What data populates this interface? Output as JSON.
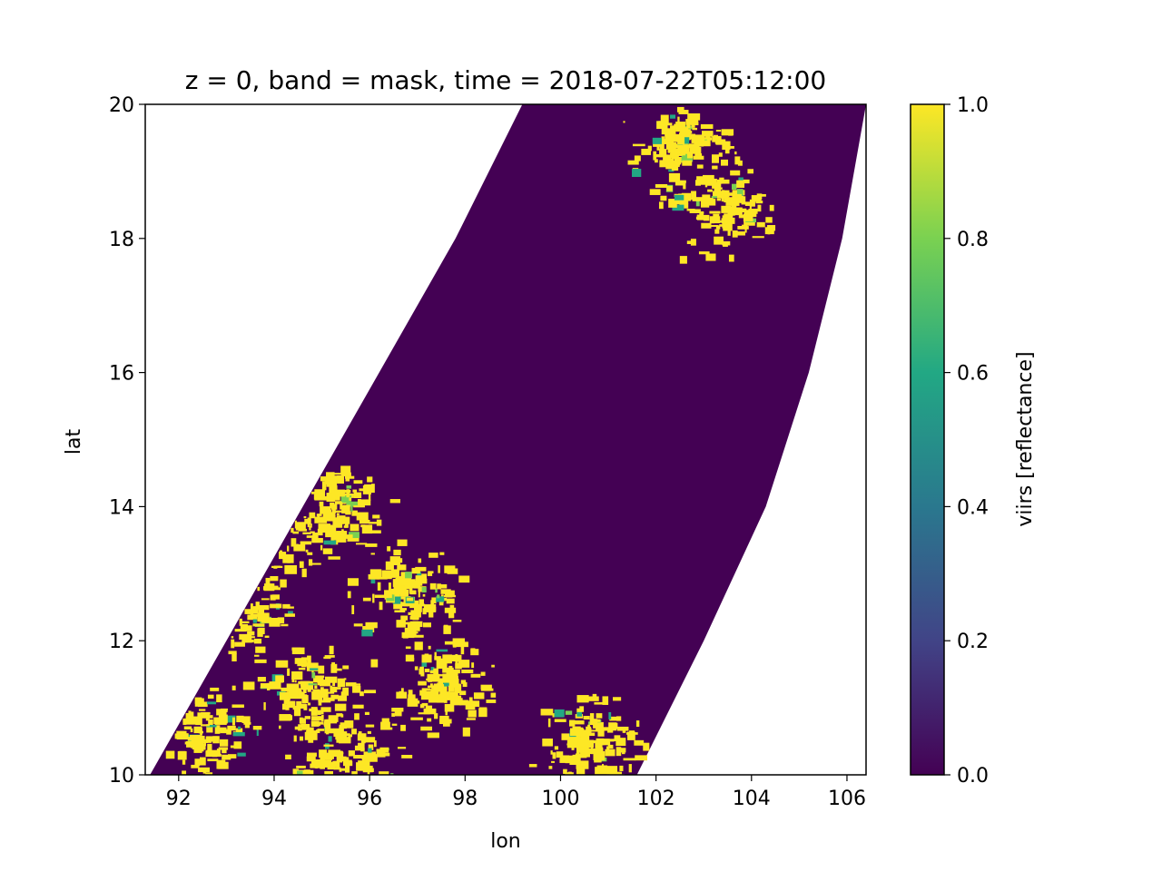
{
  "chart_data": {
    "type": "heatmap",
    "title": "z = 0, band = mask, time = 2018-07-22T05:12:00",
    "xlabel": "lon",
    "ylabel": "lat",
    "xlim": [
      91.3,
      106.4
    ],
    "ylim": [
      10,
      20
    ],
    "xticks": [
      92,
      94,
      96,
      98,
      100,
      102,
      104,
      106
    ],
    "yticks": [
      10,
      12,
      14,
      16,
      18,
      20
    ],
    "xtick_labels": [
      "92",
      "94",
      "96",
      "98",
      "100",
      "102",
      "104",
      "106"
    ],
    "ytick_labels": [
      "10",
      "12",
      "14",
      "16",
      "18",
      "20"
    ],
    "colorbar": {
      "label": "viirs [reflectance]",
      "range": [
        0.0,
        1.0
      ],
      "ticks": [
        0.0,
        0.2,
        0.4,
        0.6,
        0.8,
        1.0
      ],
      "tick_labels": [
        "0.0",
        "0.2",
        "0.4",
        "0.6",
        "0.8",
        "1.0"
      ],
      "colormap": "viridis",
      "colors": [
        "#440154",
        "#414487",
        "#2a788e",
        "#22a884",
        "#7ad151",
        "#fde725"
      ]
    },
    "swath": {
      "description": "satellite swath; values outside swath are empty",
      "left_edge": [
        [
          91.4,
          10
        ],
        [
          93.0,
          12
        ],
        [
          94.6,
          14
        ],
        [
          96.2,
          16
        ],
        [
          97.8,
          18
        ],
        [
          99.2,
          20
        ]
      ],
      "right_edge": [
        [
          101.6,
          10
        ],
        [
          103.0,
          12
        ],
        [
          104.3,
          14
        ],
        [
          105.2,
          16
        ],
        [
          105.9,
          18
        ],
        [
          106.4,
          20
        ]
      ]
    },
    "background_value": 0.0,
    "masked_regions": [
      {
        "lon": 94.0,
        "lat": 13.6,
        "value": 1.0
      },
      {
        "lon": 95.2,
        "lat": 14.1,
        "value": 1.0
      },
      {
        "lon": 93.2,
        "lat": 12.4,
        "value": 1.0
      },
      {
        "lon": 94.8,
        "lat": 11.2,
        "value": 1.0
      },
      {
        "lon": 96.8,
        "lat": 12.8,
        "value": 1.0
      },
      {
        "lon": 97.5,
        "lat": 11.4,
        "value": 1.0
      },
      {
        "lon": 92.4,
        "lat": 10.7,
        "value": 1.0
      },
      {
        "lon": 100.5,
        "lat": 10.5,
        "value": 1.0
      },
      {
        "lon": 103.3,
        "lat": 18.5,
        "value": 1.0
      },
      {
        "lon": 102.5,
        "lat": 19.4,
        "value": 1.0
      },
      {
        "lon": 95.5,
        "lat": 10.3,
        "value": 1.0
      }
    ]
  }
}
